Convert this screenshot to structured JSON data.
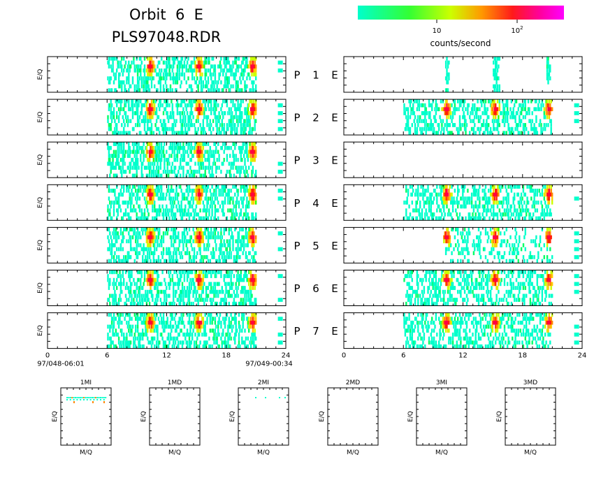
{
  "header": {
    "title_line1": "Orbit  6  E",
    "title_line2": "PLS97048.RDR"
  },
  "colorbar": {
    "tick_label_10": "10",
    "tick_label_100_base": "10",
    "tick_label_100_exp": "2",
    "unit_label": "counts/second",
    "colors": [
      "#00ffcc",
      "#00ff66",
      "#33ff00",
      "#ccff00",
      "#ffcc00",
      "#ff8800",
      "#ff2200",
      "#ff0044",
      "#ff00cc"
    ]
  },
  "time_axis": {
    "ticks": [
      "0",
      "6",
      "12",
      "18",
      "24"
    ],
    "start_label": "97/048-06:01",
    "end_label": "97/049-00:34"
  },
  "panels": {
    "ylabel": "E/Q",
    "labels": [
      {
        "p": "P",
        "n": "1",
        "e": "E"
      },
      {
        "p": "P",
        "n": "2",
        "e": "E"
      },
      {
        "p": "P",
        "n": "3",
        "e": "E"
      },
      {
        "p": "P",
        "n": "4",
        "e": "E"
      },
      {
        "p": "P",
        "n": "5",
        "e": "E"
      },
      {
        "p": "P",
        "n": "6",
        "e": "E"
      },
      {
        "p": "P",
        "n": "7",
        "e": "E"
      }
    ]
  },
  "mass_panels": {
    "ylabel": "E/Q",
    "xlabel": "M/Q",
    "titles": [
      "1MI",
      "1MD",
      "2MI",
      "2MD",
      "3MI",
      "3MD"
    ]
  },
  "chart_data": {
    "type": "heatmap",
    "x_unit": "hours",
    "xlim": [
      0,
      24
    ],
    "left_column": {
      "activity_windows": [
        [
          6,
          21
        ]
      ],
      "hotspots_hours": [
        10.3,
        15.2,
        20.6
      ],
      "peak_counts_per_second": 100
    },
    "right_column": {
      "P1": {
        "activity_windows": [
          [
            10.2,
            10.5
          ],
          [
            15.0,
            15.6
          ],
          [
            20.4,
            20.8
          ]
        ]
      },
      "P2": {
        "activity_windows": [
          [
            6,
            21
          ]
        ],
        "hotspots_hours": [
          10.3,
          15.2,
          20.6
        ]
      },
      "P3": {
        "activity_windows": []
      },
      "P4": {
        "activity_windows": [
          [
            6,
            21
          ]
        ],
        "hotspots_hours": [
          10.3,
          15.2,
          20.6
        ]
      },
      "P5": {
        "activity_windows": [
          [
            10,
            21
          ]
        ],
        "hotspots_hours": [
          10.3,
          15.2,
          20.6
        ]
      },
      "P6": {
        "activity_windows": [
          [
            6,
            21
          ]
        ],
        "hotspots_hours": [
          10.3,
          15.2,
          20.6
        ]
      },
      "P7": {
        "activity_windows": [
          [
            6,
            21
          ]
        ],
        "hotspots_hours": [
          10.3,
          15.2,
          20.6
        ]
      }
    },
    "colorbar_scale": "log",
    "colorbar_ticks": [
      10,
      100
    ]
  }
}
